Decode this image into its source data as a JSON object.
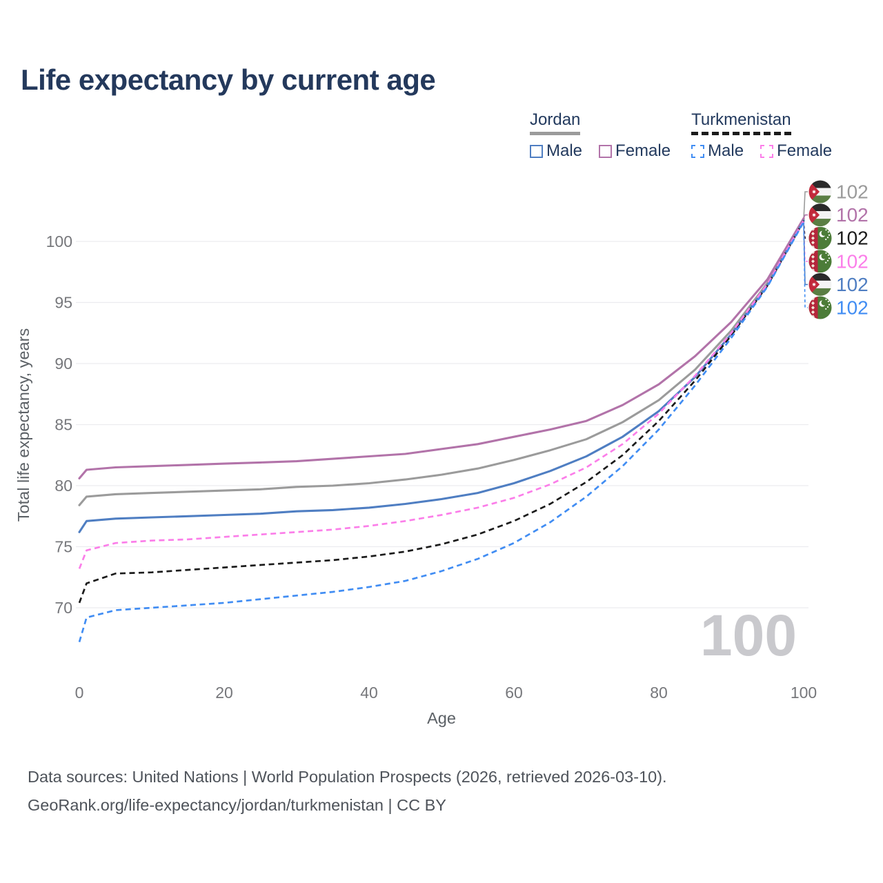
{
  "title": "Life expectancy by current age",
  "legend": {
    "groups": [
      {
        "country": "Jordan",
        "line_style": "solid",
        "underline_color": "#9b9b9b",
        "items": [
          {
            "label": "Male",
            "color": "#4f7ec2"
          },
          {
            "label": "Female",
            "color": "#b273a9"
          }
        ]
      },
      {
        "country": "Turkmenistan",
        "line_style": "dashed",
        "underline_color": "#1b1b1b",
        "items": [
          {
            "label": "Male",
            "color": "#418df3"
          },
          {
            "label": "Female",
            "color": "#fb7ee9"
          }
        ]
      }
    ]
  },
  "chart_data": {
    "type": "line",
    "title": "Life expectancy by current age",
    "xlabel": "Age",
    "ylabel": "Total life expectancy, years",
    "xlim": [
      0,
      100
    ],
    "ylim": [
      66,
      103.5
    ],
    "x_ticks": [
      0,
      20,
      40,
      60,
      80,
      100
    ],
    "y_ticks": [
      70,
      75,
      80,
      85,
      90,
      95,
      100
    ],
    "grid": true,
    "legend_position": "top-right",
    "x": [
      0,
      1,
      5,
      10,
      15,
      20,
      25,
      30,
      35,
      40,
      45,
      50,
      55,
      60,
      65,
      70,
      75,
      80,
      85,
      90,
      95,
      100
    ],
    "series": [
      {
        "name": "Jordan",
        "sex": "Total",
        "country": "Jordan",
        "color": "#9b9b9b",
        "dashed": false,
        "values": [
          78.4,
          79.1,
          79.3,
          79.4,
          79.5,
          79.6,
          79.7,
          79.9,
          80.0,
          80.2,
          80.5,
          80.9,
          81.4,
          82.1,
          82.9,
          83.8,
          85.2,
          87.0,
          89.5,
          92.7,
          96.6,
          101.8
        ]
      },
      {
        "name": "Jordan Female",
        "sex": "Female",
        "country": "Jordan",
        "color": "#b273a9",
        "dashed": false,
        "values": [
          80.6,
          81.3,
          81.5,
          81.6,
          81.7,
          81.8,
          81.9,
          82.0,
          82.2,
          82.4,
          82.6,
          83.0,
          83.4,
          84.0,
          84.6,
          85.3,
          86.6,
          88.3,
          90.6,
          93.4,
          96.9,
          101.9
        ]
      },
      {
        "name": "Jordan Male",
        "sex": "Male",
        "country": "Jordan",
        "color": "#4f7ec2",
        "dashed": false,
        "values": [
          76.2,
          77.1,
          77.3,
          77.4,
          77.5,
          77.6,
          77.7,
          77.9,
          78.0,
          78.2,
          78.5,
          78.9,
          79.4,
          80.2,
          81.2,
          82.4,
          84.0,
          86.1,
          88.9,
          92.4,
          96.4,
          101.7
        ]
      },
      {
        "name": "Turkmenistan",
        "sex": "Total",
        "country": "Turkmenistan",
        "color": "#1b1b1b",
        "dashed": true,
        "values": [
          70.4,
          72.0,
          72.8,
          72.9,
          73.1,
          73.3,
          73.5,
          73.7,
          73.9,
          74.2,
          74.6,
          75.2,
          76.0,
          77.1,
          78.5,
          80.3,
          82.5,
          85.3,
          88.6,
          92.3,
          96.4,
          101.7
        ]
      },
      {
        "name": "Turkmenistan Female",
        "sex": "Female",
        "country": "Turkmenistan",
        "color": "#fb7ee9",
        "dashed": true,
        "values": [
          73.2,
          74.7,
          75.3,
          75.5,
          75.6,
          75.8,
          76.0,
          76.2,
          76.4,
          76.7,
          77.1,
          77.6,
          78.2,
          79.0,
          80.1,
          81.5,
          83.4,
          85.9,
          89.0,
          92.5,
          96.5,
          101.7
        ]
      },
      {
        "name": "Turkmenistan Male",
        "sex": "Male",
        "country": "Turkmenistan",
        "color": "#418df3",
        "dashed": true,
        "values": [
          67.2,
          69.2,
          69.8,
          70.0,
          70.2,
          70.4,
          70.7,
          71.0,
          71.3,
          71.7,
          72.2,
          73.0,
          74.0,
          75.3,
          77.0,
          79.1,
          81.6,
          84.6,
          88.2,
          92.1,
          96.3,
          101.6
        ]
      }
    ],
    "end_labels": [
      {
        "series": "Jordan",
        "flag": "jordan",
        "text": "102"
      },
      {
        "series": "Jordan Female",
        "flag": "jordan",
        "text": "102"
      },
      {
        "series": "Turkmenistan",
        "flag": "turkmenistan",
        "text": "102"
      },
      {
        "series": "Turkmenistan Female",
        "flag": "turkmenistan",
        "text": "102"
      },
      {
        "series": "Jordan Male",
        "flag": "jordan",
        "text": "102"
      },
      {
        "series": "Turkmenistan Male",
        "flag": "turkmenistan",
        "text": "102"
      }
    ],
    "watermark": "100"
  },
  "colors": {
    "title_text": "#24395c",
    "axis_tick_text": "#76777b",
    "axis_title_text": "#5c6166",
    "gridline": "#ececef",
    "watermark_text": "#c9c9cd",
    "footer_text": "#4e535a"
  },
  "footer": {
    "line1": "Data sources: United Nations | World Population Prospects (2026, retrieved 2026-03-10).",
    "line2": "GeoRank.org/life-expectancy/jordan/turkmenistan | CC BY"
  }
}
